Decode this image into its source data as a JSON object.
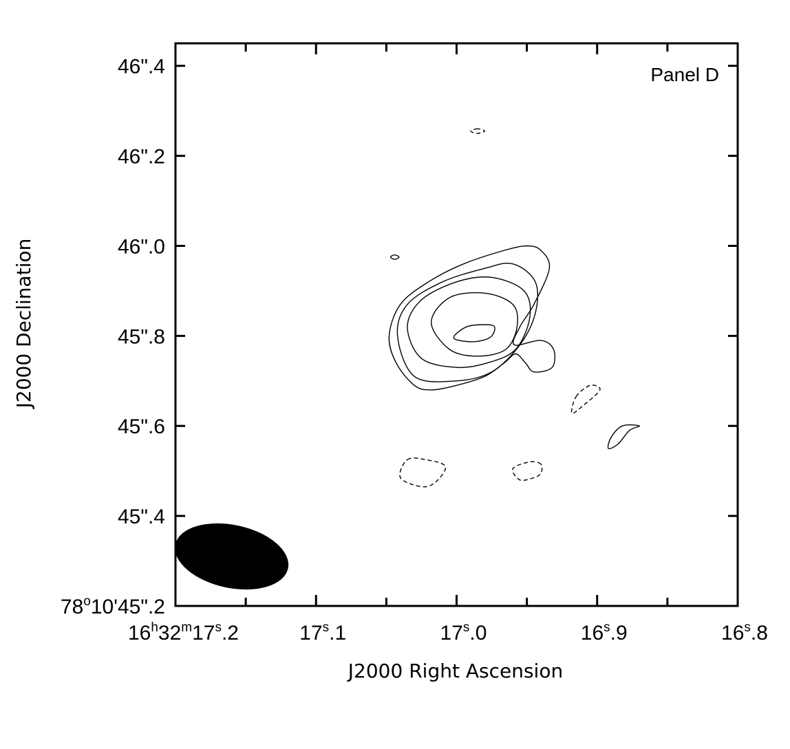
{
  "chart_data": {
    "type": "contour",
    "panel_label": "Panel D",
    "xlabel": "J2000 Right Ascension",
    "ylabel": "J2000 Declination",
    "x_units": "seconds of RA (16h32m)",
    "y_units": "arcsec of Dec (78°10')",
    "xlim": [
      17.2,
      16.8
    ],
    "ylim": [
      45.2,
      46.45
    ],
    "x_ticks": [
      {
        "value": 17.2,
        "main": "16",
        "h": "h",
        "m": "32",
        "m_unit": "m",
        "s_main": "17",
        "s_unit": "s",
        "frac": ".2"
      },
      {
        "value": 17.1,
        "s_main": "17",
        "s_unit": "s",
        "frac": ".1"
      },
      {
        "value": 17.0,
        "s_main": "17",
        "s_unit": "s",
        "frac": ".0"
      },
      {
        "value": 16.9,
        "s_main": "16",
        "s_unit": "s",
        "frac": ".9"
      },
      {
        "value": 16.8,
        "s_main": "16",
        "s_unit": "s",
        "frac": ".8"
      }
    ],
    "y_ticks": [
      {
        "value": 45.2,
        "label": "78°10'45\".2",
        "deg": "78",
        "deg_unit": "o",
        "rest": "10'45\".2"
      },
      {
        "value": 45.4,
        "label": "45\".4"
      },
      {
        "value": 45.6,
        "label": "45\".6"
      },
      {
        "value": 45.8,
        "label": "45\".8"
      },
      {
        "value": 46.0,
        "label": "46\".0"
      },
      {
        "value": 46.2,
        "label": "46\".2"
      },
      {
        "value": 46.4,
        "label": "46\".4"
      }
    ],
    "source_peak": {
      "x": 16.994,
      "y": 45.82
    },
    "positive_contours": [
      {
        "level": 1,
        "points": [
          [
            16.959,
            45.78
          ],
          [
            16.94,
            45.79
          ],
          [
            16.931,
            45.77
          ],
          [
            16.932,
            45.73
          ],
          [
            16.945,
            45.72
          ],
          [
            16.951,
            45.74
          ],
          [
            16.958,
            45.76
          ],
          [
            16.966,
            45.74
          ],
          [
            16.98,
            45.71
          ],
          [
            17.0,
            45.69
          ],
          [
            17.018,
            45.68
          ],
          [
            17.03,
            45.69
          ],
          [
            17.043,
            45.74
          ],
          [
            17.048,
            45.8
          ],
          [
            17.04,
            45.87
          ],
          [
            17.02,
            45.92
          ],
          [
            16.995,
            45.96
          ],
          [
            16.966,
            45.99
          ],
          [
            16.95,
            46.0
          ],
          [
            16.94,
            45.99
          ],
          [
            16.934,
            45.95
          ],
          [
            16.945,
            45.87
          ],
          [
            16.955,
            45.82
          ]
        ]
      },
      {
        "level": 2,
        "points": [
          [
            17.042,
            45.8
          ],
          [
            17.035,
            45.87
          ],
          [
            17.01,
            45.92
          ],
          [
            16.98,
            45.95
          ],
          [
            16.96,
            45.96
          ],
          [
            16.944,
            45.92
          ],
          [
            16.944,
            45.85
          ],
          [
            16.955,
            45.78
          ],
          [
            16.975,
            45.72
          ],
          [
            17.0,
            45.7
          ],
          [
            17.03,
            45.71
          ]
        ]
      },
      {
        "level": 3,
        "points": [
          [
            17.035,
            45.82
          ],
          [
            17.025,
            45.88
          ],
          [
            17.0,
            45.92
          ],
          [
            16.975,
            45.93
          ],
          [
            16.952,
            45.9
          ],
          [
            16.948,
            45.84
          ],
          [
            16.958,
            45.77
          ],
          [
            16.978,
            45.74
          ],
          [
            17.0,
            45.73
          ],
          [
            17.025,
            45.75
          ]
        ]
      },
      {
        "level": 4,
        "points": [
          [
            17.018,
            45.83
          ],
          [
            17.005,
            45.885
          ],
          [
            16.98,
            45.895
          ],
          [
            16.96,
            45.87
          ],
          [
            16.957,
            45.82
          ],
          [
            16.965,
            45.77
          ],
          [
            16.985,
            45.755
          ],
          [
            17.005,
            45.77
          ]
        ]
      },
      {
        "level": 5,
        "points": [
          [
            16.993,
            45.82
          ],
          [
            16.98,
            45.825
          ],
          [
            16.973,
            45.82
          ],
          [
            16.976,
            45.797
          ],
          [
            16.988,
            45.787
          ],
          [
            17.002,
            45.795
          ]
        ]
      },
      {
        "level": 1,
        "points": [
          [
            16.87,
            45.6
          ],
          [
            16.877,
            45.59
          ],
          [
            16.885,
            45.56
          ],
          [
            16.892,
            45.55
          ],
          [
            16.89,
            45.575
          ],
          [
            16.882,
            45.6
          ]
        ]
      },
      {
        "level": 1,
        "points": [
          [
            17.044,
            45.98
          ],
          [
            17.047,
            45.975
          ],
          [
            17.044,
            45.97
          ],
          [
            17.041,
            45.975
          ]
        ]
      }
    ],
    "negative_contours": [
      {
        "points": [
          [
            17.035,
            45.525
          ],
          [
            17.022,
            45.525
          ],
          [
            17.008,
            45.51
          ],
          [
            17.015,
            45.475
          ],
          [
            17.025,
            45.465
          ],
          [
            17.04,
            45.485
          ]
        ]
      },
      {
        "points": [
          [
            16.94,
            45.515
          ],
          [
            16.948,
            45.52
          ],
          [
            16.96,
            45.505
          ],
          [
            16.955,
            45.48
          ],
          [
            16.945,
            45.485
          ],
          [
            16.94,
            45.495
          ]
        ]
      },
      {
        "points": [
          [
            16.915,
            45.665
          ],
          [
            16.905,
            45.69
          ],
          [
            16.898,
            45.68
          ],
          [
            16.91,
            45.645
          ],
          [
            16.918,
            45.628
          ]
        ]
      },
      {
        "points": [
          [
            16.985,
            46.26
          ],
          [
            16.99,
            46.255
          ],
          [
            16.985,
            46.25
          ],
          [
            16.98,
            46.255
          ]
        ]
      }
    ],
    "beam": {
      "center_x": 17.16,
      "center_y": 45.31,
      "width_s": 0.082,
      "height_as": 0.14
    }
  }
}
